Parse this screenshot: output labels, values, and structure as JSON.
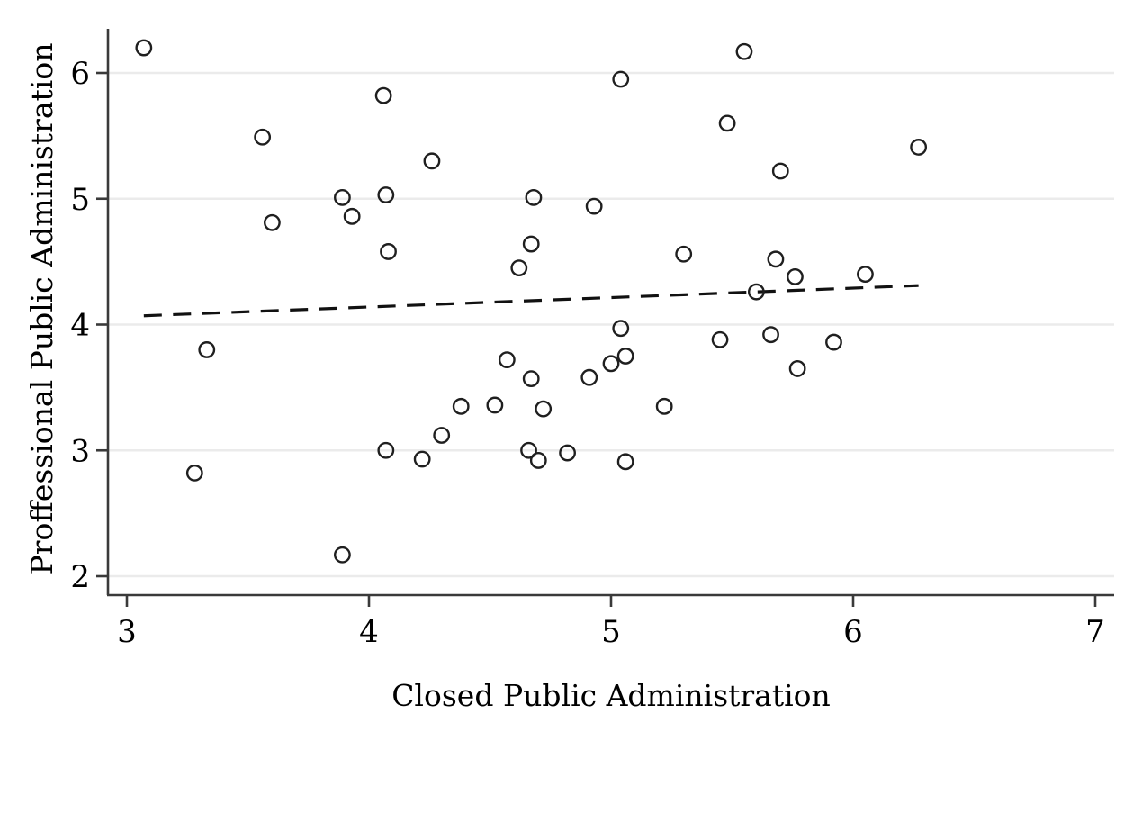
{
  "chart_data": {
    "type": "scatter",
    "title": "",
    "xlabel": "Closed Public Administration",
    "ylabel": "Proffessional Public Administration",
    "x_ticks": [
      "3",
      "4",
      "5",
      "6",
      "7"
    ],
    "y_ticks": [
      "2",
      "3",
      "4",
      "5",
      "6"
    ],
    "x_tick_values": [
      3,
      4,
      5,
      6,
      7
    ],
    "y_tick_values": [
      2,
      3,
      4,
      5,
      6
    ],
    "xlim": [
      2.92,
      7.08
    ],
    "ylim": [
      1.85,
      6.36
    ],
    "grid": "horizontal-only",
    "legend_position": "none",
    "marker_style": "hollow-circle",
    "points": [
      [
        3.07,
        6.2
      ],
      [
        3.28,
        2.82
      ],
      [
        3.33,
        3.8
      ],
      [
        3.56,
        5.49
      ],
      [
        3.6,
        4.81
      ],
      [
        3.89,
        5.01
      ],
      [
        3.89,
        2.17
      ],
      [
        3.93,
        4.86
      ],
      [
        4.06,
        5.82
      ],
      [
        4.07,
        5.03
      ],
      [
        4.07,
        3.0
      ],
      [
        4.08,
        4.58
      ],
      [
        4.22,
        2.93
      ],
      [
        4.26,
        5.3
      ],
      [
        4.3,
        3.12
      ],
      [
        4.38,
        3.35
      ],
      [
        4.52,
        3.36
      ],
      [
        4.57,
        3.72
      ],
      [
        4.62,
        4.45
      ],
      [
        4.66,
        3.0
      ],
      [
        4.67,
        4.64
      ],
      [
        4.67,
        3.57
      ],
      [
        4.68,
        5.01
      ],
      [
        4.7,
        2.92
      ],
      [
        4.72,
        3.33
      ],
      [
        4.82,
        2.98
      ],
      [
        4.91,
        3.58
      ],
      [
        4.93,
        4.94
      ],
      [
        5.0,
        3.69
      ],
      [
        5.04,
        5.95
      ],
      [
        5.04,
        3.97
      ],
      [
        5.06,
        3.75
      ],
      [
        5.06,
        2.91
      ],
      [
        5.22,
        3.35
      ],
      [
        5.3,
        4.56
      ],
      [
        5.45,
        3.88
      ],
      [
        5.48,
        5.6
      ],
      [
        5.55,
        6.17
      ],
      [
        5.6,
        4.26
      ],
      [
        5.66,
        3.92
      ],
      [
        5.68,
        4.52
      ],
      [
        5.7,
        5.22
      ],
      [
        5.76,
        4.38
      ],
      [
        5.77,
        3.65
      ],
      [
        5.92,
        3.86
      ],
      [
        6.05,
        4.4
      ],
      [
        6.27,
        5.41
      ]
    ],
    "trend_line": {
      "type": "fit-line",
      "style": "dashed",
      "x1": 3.07,
      "y1": 4.07,
      "x2": 6.27,
      "y2": 4.31
    },
    "colors": {
      "marker": "#1f1f1f",
      "trend": "#111111",
      "grid": "#ebebeb",
      "axis": "#3a3a3a",
      "text": "#000000",
      "background": "#ffffff"
    }
  }
}
